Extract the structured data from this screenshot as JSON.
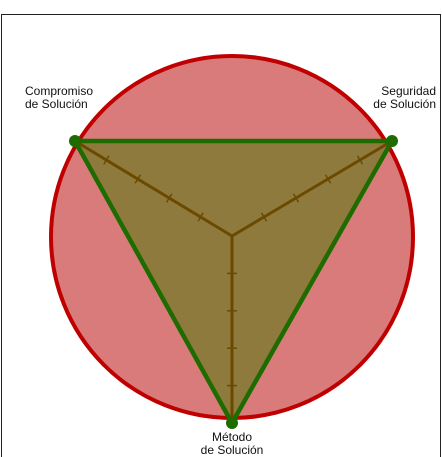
{
  "nodes": [
    {
      "label": [
        "Compromiso",
        "de Solución"
      ]
    },
    {
      "label": [
        "Seguridad",
        "de Solución"
      ]
    },
    {
      "label": [
        "Método",
        "de Solución"
      ]
    }
  ]
}
